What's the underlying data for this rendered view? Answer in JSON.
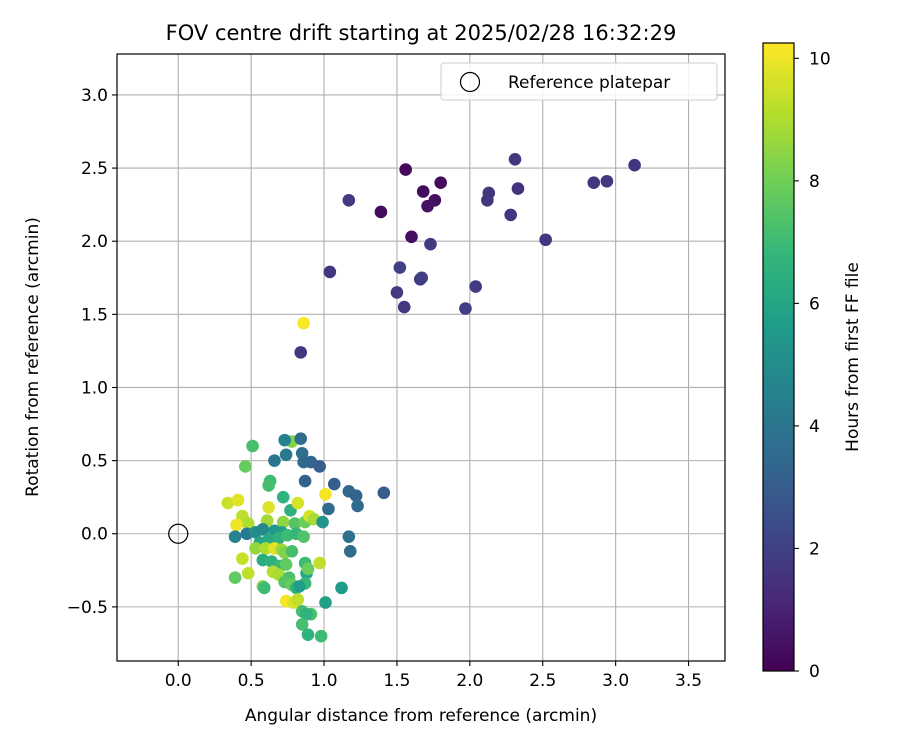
{
  "chart_data": {
    "type": "scatter",
    "title": "FOV centre drift starting at 2025/02/28 16:32:29",
    "xlabel": "Angular distance from reference (arcmin)",
    "ylabel": "Rotation from reference (arcmin)",
    "xlim": [
      -0.42,
      3.75
    ],
    "ylim": [
      -0.87,
      3.28
    ],
    "x_ticks": [
      "0.0",
      "0.5",
      "1.0",
      "1.5",
      "2.0",
      "2.5",
      "3.0",
      "3.5"
    ],
    "y_ticks": [
      "−0.5",
      "0.0",
      "0.5",
      "1.0",
      "1.5",
      "2.0",
      "2.5",
      "3.0"
    ],
    "grid": true,
    "legend": {
      "position": "top-right",
      "label": "Reference platepar",
      "marker": "open-circle"
    },
    "reference_point": {
      "x": 0.0,
      "y": 0.0
    },
    "colorbar": {
      "label": "Hours from first FF file",
      "min": 0,
      "max": 10.25,
      "ticks": [
        "0",
        "2",
        "4",
        "6",
        "8",
        "10"
      ],
      "colormap": [
        "#440154",
        "#482878",
        "#3e4989",
        "#31688e",
        "#26828e",
        "#1f9e89",
        "#35b779",
        "#6ece58",
        "#b5de2b",
        "#fde725"
      ]
    },
    "series": [
      {
        "points": [
          [
            1.56,
            2.49,
            0.2
          ],
          [
            1.68,
            2.34,
            0.3
          ],
          [
            1.8,
            2.4,
            0.3
          ],
          [
            1.76,
            2.28,
            0.4
          ],
          [
            1.71,
            2.24,
            0.5
          ],
          [
            1.39,
            2.2,
            0.3
          ],
          [
            1.6,
            2.03,
            0.4
          ],
          [
            2.31,
            2.56,
            1.6
          ],
          [
            2.33,
            2.36,
            1.5
          ],
          [
            2.12,
            2.28,
            1.6
          ],
          [
            2.13,
            2.33,
            1.7
          ],
          [
            2.28,
            2.18,
            1.6
          ],
          [
            2.85,
            2.4,
            1.6
          ],
          [
            2.94,
            2.41,
            1.7
          ],
          [
            3.13,
            2.52,
            1.6
          ],
          [
            2.52,
            2.01,
            1.7
          ],
          [
            1.17,
            2.28,
            1.8
          ],
          [
            1.73,
            1.98,
            1.8
          ],
          [
            1.66,
            1.74,
            1.7
          ],
          [
            1.67,
            1.75,
            1.9
          ],
          [
            1.52,
            1.82,
            2.0
          ],
          [
            1.5,
            1.65,
            1.8
          ],
          [
            1.55,
            1.55,
            1.7
          ],
          [
            1.04,
            1.79,
            1.7
          ],
          [
            1.97,
            1.54,
            1.9
          ],
          [
            2.04,
            1.69,
            1.8
          ],
          [
            0.84,
            1.24,
            1.7
          ],
          [
            0.86,
            1.44,
            10.2
          ],
          [
            0.51,
            0.6,
            7.2
          ],
          [
            0.46,
            0.46,
            7.8
          ],
          [
            0.78,
            0.63,
            8.3
          ],
          [
            0.73,
            0.64,
            4.6
          ],
          [
            0.84,
            0.65,
            3.6
          ],
          [
            0.74,
            0.54,
            4.1
          ],
          [
            0.85,
            0.55,
            3.7
          ],
          [
            0.66,
            0.5,
            4.0
          ],
          [
            0.86,
            0.49,
            3.5
          ],
          [
            0.91,
            0.49,
            3.3
          ],
          [
            0.97,
            0.46,
            3.0
          ],
          [
            1.07,
            0.34,
            3.1
          ],
          [
            0.87,
            0.36,
            3.2
          ],
          [
            1.17,
            0.29,
            3.4
          ],
          [
            1.22,
            0.26,
            3.3
          ],
          [
            1.41,
            0.28,
            3.0
          ],
          [
            1.23,
            0.19,
            3.5
          ],
          [
            1.03,
            0.17,
            3.6
          ],
          [
            0.63,
            0.36,
            7.0
          ],
          [
            0.62,
            0.33,
            7.2
          ],
          [
            0.72,
            0.25,
            6.6
          ],
          [
            0.77,
            0.16,
            6.5
          ],
          [
            0.82,
            0.21,
            9.6
          ],
          [
            1.01,
            0.27,
            10.1
          ],
          [
            0.34,
            0.21,
            9.4
          ],
          [
            0.41,
            0.23,
            9.8
          ],
          [
            0.44,
            0.12,
            9.2
          ],
          [
            0.62,
            0.18,
            9.7
          ],
          [
            0.48,
            0.07,
            9.0
          ],
          [
            0.4,
            0.06,
            10.0
          ],
          [
            0.61,
            0.09,
            8.8
          ],
          [
            0.72,
            0.08,
            8.5
          ],
          [
            0.8,
            0.07,
            7.5
          ],
          [
            0.87,
            0.08,
            7.9
          ],
          [
            0.9,
            0.12,
            9.6
          ],
          [
            0.93,
            0.1,
            8.9
          ],
          [
            0.99,
            0.08,
            5.3
          ],
          [
            0.39,
            -0.02,
            4.5
          ],
          [
            0.47,
            0.0,
            4.2
          ],
          [
            0.53,
            0.01,
            5.0
          ],
          [
            0.58,
            0.03,
            4.8
          ],
          [
            0.66,
            0.02,
            5.5
          ],
          [
            0.71,
            0.01,
            5.8
          ],
          [
            0.56,
            -0.06,
            6.0
          ],
          [
            0.62,
            -0.04,
            6.2
          ],
          [
            0.69,
            -0.03,
            6.5
          ],
          [
            0.75,
            -0.01,
            7.0
          ],
          [
            0.81,
            0.0,
            6.8
          ],
          [
            0.86,
            -0.02,
            7.4
          ],
          [
            0.53,
            -0.1,
            8.6
          ],
          [
            0.6,
            -0.1,
            9.0
          ],
          [
            0.66,
            -0.1,
            9.8
          ],
          [
            0.71,
            -0.11,
            8.7
          ],
          [
            0.73,
            -0.13,
            8.3
          ],
          [
            0.78,
            -0.12,
            7.2
          ],
          [
            0.44,
            -0.17,
            9.4
          ],
          [
            0.58,
            -0.18,
            6.4
          ],
          [
            0.64,
            -0.19,
            6.6
          ],
          [
            0.7,
            -0.22,
            6.9
          ],
          [
            0.74,
            -0.21,
            7.7
          ],
          [
            0.48,
            -0.27,
            9.3
          ],
          [
            0.65,
            -0.26,
            9.1
          ],
          [
            0.69,
            -0.28,
            8.9
          ],
          [
            0.76,
            -0.3,
            7.3
          ],
          [
            0.87,
            -0.2,
            7.0
          ],
          [
            0.88,
            -0.27,
            6.0
          ],
          [
            0.89,
            -0.24,
            7.9
          ],
          [
            0.97,
            -0.2,
            9.3
          ],
          [
            0.39,
            -0.3,
            7.7
          ],
          [
            0.58,
            -0.36,
            8.4
          ],
          [
            0.59,
            -0.37,
            7.0
          ],
          [
            0.73,
            -0.33,
            7.5
          ],
          [
            0.78,
            -0.35,
            7.8
          ],
          [
            0.81,
            -0.37,
            6.6
          ],
          [
            0.87,
            -0.34,
            6.9
          ],
          [
            0.83,
            -0.36,
            5.7
          ],
          [
            0.74,
            -0.46,
            10.1
          ],
          [
            0.79,
            -0.47,
            9.7
          ],
          [
            0.82,
            -0.45,
            9.3
          ],
          [
            0.85,
            -0.53,
            7.1
          ],
          [
            0.91,
            -0.55,
            7.3
          ],
          [
            0.88,
            -0.55,
            6.5
          ],
          [
            1.01,
            -0.47,
            5.8
          ],
          [
            1.12,
            -0.37,
            5.6
          ],
          [
            1.17,
            -0.02,
            3.8
          ],
          [
            1.18,
            -0.12,
            3.6
          ],
          [
            0.85,
            -0.62,
            7.2
          ],
          [
            0.89,
            -0.69,
            6.6
          ],
          [
            0.98,
            -0.7,
            7.0
          ]
        ]
      }
    ]
  }
}
